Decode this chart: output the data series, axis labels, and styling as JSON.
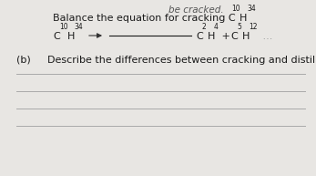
{
  "bg_color": "#e8e6e3",
  "text_color": "#1a1a1a",
  "bottom_bg": "#d4d0cc",
  "top_cut_text": "be cracked.",
  "title_line": "Balance the equation for cracking C",
  "title_sub_num": "10",
  "title_sub_H": "H",
  "title_sub_34": "34",
  "lhs_C": "C",
  "lhs_10": "10",
  "lhs_H": "H",
  "lhs_34": "34",
  "rhs_C1": "C",
  "rhs_2": "2",
  "rhs_H1": "H",
  "rhs_4": "4",
  "rhs_plus": " + ",
  "rhs_C2": "C",
  "rhs_5": "5",
  "rhs_H2": "H",
  "rhs_12": "12",
  "part_b_label": "(b)",
  "part_b_text": "Describe the differences between cracking and distillation.",
  "fs_main": 8.0,
  "fs_sub": 5.5,
  "fs_b": 8.0,
  "line_color": "#aaaaaa",
  "arrow_color": "#333333"
}
